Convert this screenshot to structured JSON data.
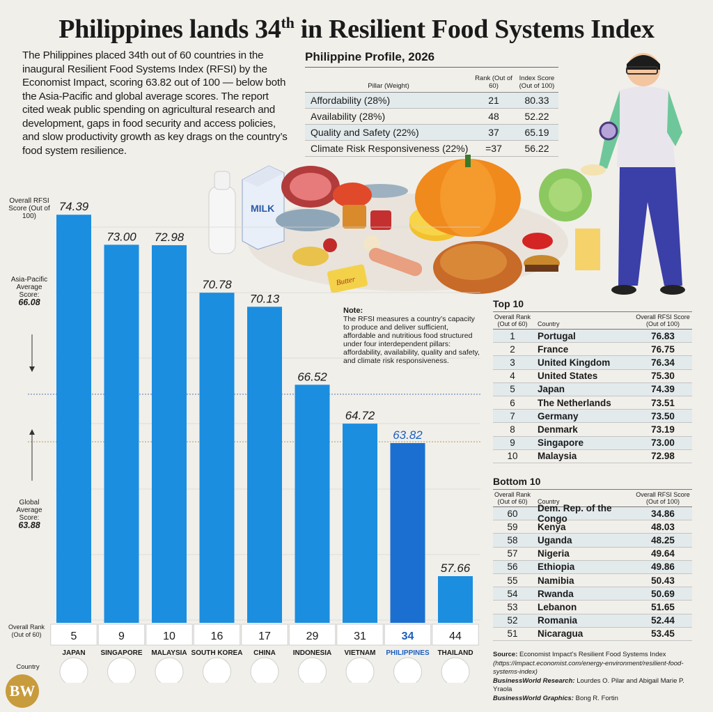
{
  "title": {
    "main": "Philippines lands 34",
    "sup": "th",
    "rest": " in Resilient Food Systems Index"
  },
  "intro": "The Philippines placed 34th out of 60 countries in the inaugural Resilient Food Systems Index (RFSI) by the Economist Impact, scoring 63.82 out of 100 — below both the Asia-Pacific and global average scores. The report cited weak public spending on agricultural research and development, gaps in food security and access policies, and slow productivity growth as key drags on the country’s food system resilience.",
  "profile": {
    "title": "Philippine Profile, 2026",
    "col_pillar": "Pillar (Weight)",
    "col_rank": "Rank (Out of 60)",
    "col_score": "Index Score (Out of 100)",
    "rows": [
      {
        "pillar": "Affordability (28%)",
        "rank": "21",
        "score": "80.33"
      },
      {
        "pillar": "Availability (28%)",
        "rank": "48",
        "score": "52.22"
      },
      {
        "pillar": "Quality and Safety (22%)",
        "rank": "37",
        "score": "65.19"
      },
      {
        "pillar": "Climate Risk Responsiveness (22%)",
        "rank": "=37",
        "score": "56.22"
      }
    ]
  },
  "chart_data": {
    "type": "bar",
    "ylabel": "Overall RFSI Score (Out of 100)",
    "categories": [
      "JAPAN",
      "SINGAPORE",
      "MALAYSIA",
      "SOUTH KOREA",
      "CHINA",
      "INDONESIA",
      "VIETNAM",
      "PHILIPPINES",
      "THAILAND"
    ],
    "values": [
      74.39,
      73.0,
      72.98,
      70.78,
      70.13,
      66.52,
      64.72,
      63.82,
      57.66
    ],
    "value_labels": [
      "74.39",
      "73.00",
      "72.98",
      "70.78",
      "70.13",
      "66.52",
      "64.72",
      "63.82",
      "57.66"
    ],
    "ranks": [
      "5",
      "9",
      "10",
      "16",
      "17",
      "29",
      "31",
      "34",
      "44"
    ],
    "highlight": "PHILIPPINES",
    "bar_color": "#1b8ee0",
    "highlight_color": "#1b6fd0",
    "reference_lines": [
      {
        "label": "Asia-Pacific Average Score:",
        "value": 66.08,
        "value_label": "66.08",
        "color": "#4b77b0"
      },
      {
        "label": "Global Average Score:",
        "value": 63.88,
        "value_label": "63.88",
        "color": "#b8964a"
      }
    ],
    "rank_label": "Overall Rank (Out of 60)",
    "country_label": "Country"
  },
  "note": {
    "heading": "Note:",
    "text": "The RFSI measures a country’s capacity to produce and deliver sufficient, affordable and nutritious food structured under four interdependent pillars: affordability, availability, quality and safety, and climate risk responsiveness."
  },
  "top10": {
    "title": "Top 10",
    "col_rank": "Overall Rank (Out of 60)",
    "col_country": "Country",
    "col_score": "Overall RFSI Score (Out of 100)",
    "rows": [
      {
        "rank": "1",
        "country": "Portugal",
        "score": "76.83"
      },
      {
        "rank": "2",
        "country": "France",
        "score": "76.75"
      },
      {
        "rank": "3",
        "country": "United Kingdom",
        "score": "76.34"
      },
      {
        "rank": "4",
        "country": "United States",
        "score": "75.30"
      },
      {
        "rank": "5",
        "country": "Japan",
        "score": "74.39"
      },
      {
        "rank": "6",
        "country": "The Netherlands",
        "score": "73.51"
      },
      {
        "rank": "7",
        "country": "Germany",
        "score": "73.50"
      },
      {
        "rank": "8",
        "country": "Denmark",
        "score": "73.19"
      },
      {
        "rank": "9",
        "country": "Singapore",
        "score": "73.00"
      },
      {
        "rank": "10",
        "country": "Malaysia",
        "score": "72.98"
      }
    ]
  },
  "bottom10": {
    "title": "Bottom 10",
    "col_rank": "Overall Rank (Out of 60)",
    "col_country": "Country",
    "col_score": "Overall RFSI Score (Out of 100)",
    "rows": [
      {
        "rank": "60",
        "country": "Dem. Rep. of the Congo",
        "score": "34.86"
      },
      {
        "rank": "59",
        "country": "Kenya",
        "score": "48.03"
      },
      {
        "rank": "58",
        "country": "Uganda",
        "score": "48.25"
      },
      {
        "rank": "57",
        "country": "Nigeria",
        "score": "49.64"
      },
      {
        "rank": "56",
        "country": "Ethiopia",
        "score": "49.86"
      },
      {
        "rank": "55",
        "country": "Namibia",
        "score": "50.43"
      },
      {
        "rank": "54",
        "country": "Rwanda",
        "score": "50.69"
      },
      {
        "rank": "53",
        "country": "Lebanon",
        "score": "51.65"
      },
      {
        "rank": "52",
        "country": "Romania",
        "score": "52.44"
      },
      {
        "rank": "51",
        "country": "Nicaragua",
        "score": "53.45"
      }
    ]
  },
  "source": {
    "label": "Source:",
    "text": "Economist Impact’s Resilient Food Systems Index",
    "url": "(https://impact.economist.com/energy-environment/resilient-food-systems-index)",
    "research_label": "BusinessWorld Research:",
    "research": "Lourdes O. Pilar and Abigail Marie P. Yraola",
    "graphics_label": "BusinessWorld Graphics:",
    "graphics": "Bong R. Fortin"
  },
  "logo": "BW",
  "food_labels": {
    "milk": "MILK",
    "butter": "Butter"
  }
}
